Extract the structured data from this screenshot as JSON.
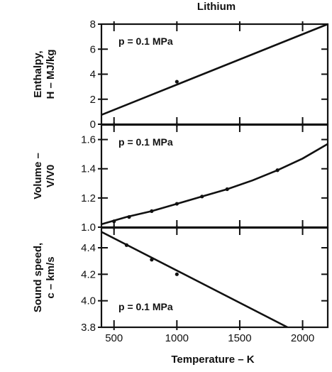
{
  "chart_data": {
    "title": "Lithium",
    "xlabel": "Temperature – K",
    "xlim": [
      400,
      2200
    ],
    "x_ticks": [
      500,
      1000,
      1500,
      2000
    ],
    "x_tick_labels": [
      "500",
      "1000",
      "1500",
      "2000"
    ],
    "panels": [
      {
        "type": "line",
        "ylabel_lines": [
          "Enthalpy,",
          "H – MJ/kg"
        ],
        "ylim": [
          0,
          8
        ],
        "y_ticks": [
          0,
          2,
          4,
          6,
          8
        ],
        "y_tick_labels": [
          "0",
          "2",
          "4",
          "6",
          "8"
        ],
        "annotation": "p = 0.1 MPa",
        "series": [
          {
            "x": [
              400,
              2200
            ],
            "y": [
              0.75,
              8.0
            ]
          }
        ],
        "points": {
          "x": [
            1000
          ],
          "y": [
            3.4
          ]
        }
      },
      {
        "type": "line",
        "ylabel_lines": [
          "Volume –",
          "V/V0"
        ],
        "ylim": [
          1.0,
          1.7
        ],
        "y_ticks": [
          1.0,
          1.2,
          1.4,
          1.6
        ],
        "y_tick_labels": [
          "1.0",
          "1.2",
          "1.4",
          "1.6"
        ],
        "annotation": "p = 0.1 MPa",
        "series": [
          {
            "x": [
              400,
              600,
              800,
              1000,
              1200,
              1400,
              1600,
              1800,
              2000,
              2200
            ],
            "y": [
              1.02,
              1.07,
              1.11,
              1.16,
              1.21,
              1.26,
              1.32,
              1.39,
              1.47,
              1.57
            ]
          }
        ],
        "points": {
          "x": [
            500,
            620,
            800,
            1000,
            1200,
            1400,
            1800
          ],
          "y": [
            1.04,
            1.07,
            1.11,
            1.16,
            1.21,
            1.26,
            1.39
          ]
        }
      },
      {
        "type": "line",
        "ylabel_lines": [
          "Sound speed,",
          "c – km/s"
        ],
        "ylim": [
          3.8,
          4.55
        ],
        "y_ticks": [
          3.8,
          4.0,
          4.2,
          4.4
        ],
        "y_tick_labels": [
          "3.8",
          "4.0",
          "4.2",
          "4.4"
        ],
        "annotation": "p = 0.1 MPa",
        "series": [
          {
            "x": [
              400,
              1880
            ],
            "y": [
              4.52,
              3.8
            ]
          }
        ],
        "points": {
          "x": [
            600,
            800,
            1000
          ],
          "y": [
            4.42,
            4.31,
            4.2
          ]
        }
      }
    ]
  }
}
